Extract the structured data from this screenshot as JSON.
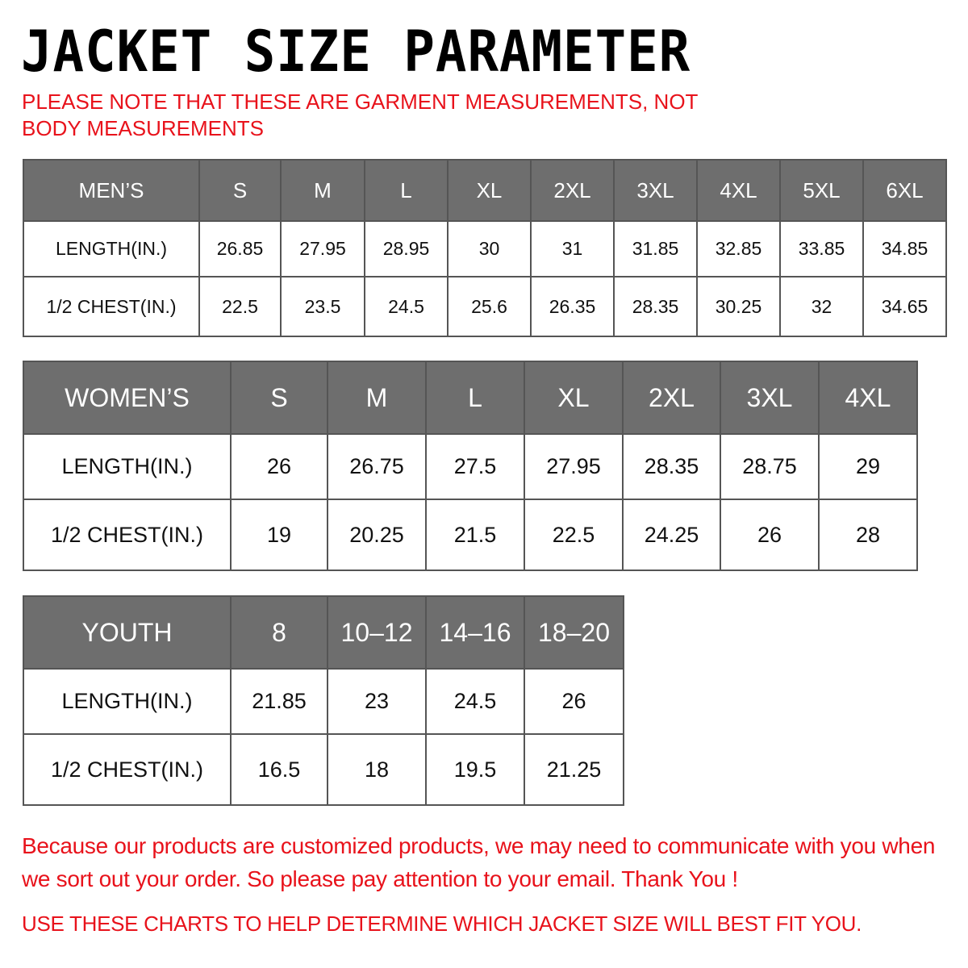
{
  "title": "JACKET SIZE PARAMETER",
  "note": "PLEASE NOTE THAT THESE ARE GARMENT MEASUREMENTS, NOT BODY MEASUREMENTS",
  "colors": {
    "header_bg": "#6e6e6e",
    "note_red": "#e8121b"
  },
  "tables": [
    {
      "id": "men",
      "header": [
        "MEN’S",
        "S",
        "M",
        "L",
        "XL",
        "2XL",
        "3XL",
        "4XL",
        "5XL",
        "6XL"
      ],
      "rows": [
        [
          "LENGTH(IN.)",
          "26.85",
          "27.95",
          "28.95",
          "30",
          "31",
          "31.85",
          "32.85",
          "33.85",
          "34.85"
        ],
        [
          "1/2 CHEST(IN.)",
          "22.5",
          "23.5",
          "24.5",
          "25.6",
          "26.35",
          "28.35",
          "30.25",
          "32",
          "34.65"
        ]
      ]
    },
    {
      "id": "women",
      "header": [
        "WOMEN’S",
        "S",
        "M",
        "L",
        "XL",
        "2XL",
        "3XL",
        "4XL"
      ],
      "rows": [
        [
          "LENGTH(IN.)",
          "26",
          "26.75",
          "27.5",
          "27.95",
          "28.35",
          "28.75",
          "29"
        ],
        [
          "1/2 CHEST(IN.)",
          "19",
          "20.25",
          "21.5",
          "22.5",
          "24.25",
          "26",
          "28"
        ]
      ]
    },
    {
      "id": "youth",
      "header": [
        "YOUTH",
        "8",
        "10–12",
        "14–16",
        "18–20"
      ],
      "rows": [
        [
          "LENGTH(IN.)",
          "21.85",
          "23",
          "24.5",
          "26"
        ],
        [
          "1/2 CHEST(IN.)",
          "16.5",
          "18",
          "19.5",
          "21.25"
        ]
      ]
    }
  ],
  "footer": {
    "message": "Because our products are customized products, we may need to communicate with you when we sort out your order. So please pay attention to your email. Thank You !",
    "advice": "USE THESE CHARTS TO HELP DETERMINE WHICH JACKET SIZE WILL BEST FIT YOU."
  }
}
